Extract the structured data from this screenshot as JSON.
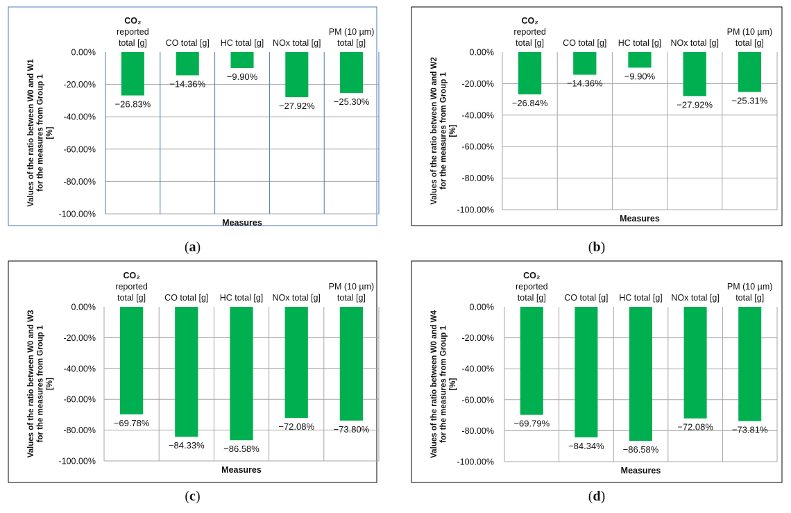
{
  "colors": {
    "bar": "#00b050",
    "grid": "#a6a6a6",
    "frame": "#000000",
    "panel_border_a": "#4a7ab8"
  },
  "chart_data": [
    {
      "type": "bar",
      "panel": "a",
      "caption": "a",
      "categories": [
        {
          "lines": [
            "CO₂",
            "reported",
            "total [g]"
          ]
        },
        {
          "lines": [
            "CO total [g]"
          ]
        },
        {
          "lines": [
            "HC total [g]"
          ]
        },
        {
          "lines": [
            "NOx total [g]"
          ]
        },
        {
          "lines": [
            "PM (10 µm)",
            "total [g]"
          ]
        }
      ],
      "values": [
        -26.83,
        -14.36,
        -9.9,
        -27.92,
        -25.3
      ],
      "value_labels": [
        "−26.83%",
        "−14.36%",
        "−9.90%",
        "−27.92%",
        "−25.30%"
      ],
      "yticks": [
        "0.00%",
        "-20.00%",
        "-40.00%",
        "-60.00%",
        "-80.00%",
        "-100.00%"
      ],
      "ylim": [
        -100,
        0
      ],
      "xlabel": "Measures",
      "ylabel": [
        "Values of the ratio between W0 and W1",
        "for the measures from Group 1",
        "[%]"
      ]
    },
    {
      "type": "bar",
      "panel": "b",
      "caption": "b",
      "categories": [
        {
          "lines": [
            "CO₂",
            "reported",
            "total [g]"
          ]
        },
        {
          "lines": [
            "CO total [g]"
          ]
        },
        {
          "lines": [
            "HC total [g]"
          ]
        },
        {
          "lines": [
            "NOx total [g]"
          ]
        },
        {
          "lines": [
            "PM (10 µm)",
            "total [g]"
          ]
        }
      ],
      "values": [
        -26.84,
        -14.36,
        -9.9,
        -27.92,
        -25.31
      ],
      "value_labels": [
        "−26.84%",
        "−14.36%",
        "−9.90%",
        "−27.92%",
        "−25.31%"
      ],
      "yticks": [
        "0.00%",
        "-20.00%",
        "-40.00%",
        "-60.00%",
        "-80.00%",
        "-100.00%"
      ],
      "ylim": [
        -100,
        0
      ],
      "xlabel": "Measures",
      "ylabel": [
        "Values of the ratio between W0 and W2",
        "for the measures from Group 1",
        "[%]"
      ]
    },
    {
      "type": "bar",
      "panel": "c",
      "caption": "c",
      "categories": [
        {
          "lines": [
            "CO₂",
            "reported",
            "total [g]"
          ]
        },
        {
          "lines": [
            "CO total [g]"
          ]
        },
        {
          "lines": [
            "HC total [g]"
          ]
        },
        {
          "lines": [
            "NOx total [g]"
          ]
        },
        {
          "lines": [
            "PM (10 µm)",
            "total [g]"
          ]
        }
      ],
      "values": [
        -69.78,
        -84.33,
        -86.58,
        -72.08,
        -73.8
      ],
      "value_labels": [
        "−69.78%",
        "−84.33%",
        "−86.58%",
        "−72.08%",
        "−73.80%"
      ],
      "yticks": [
        "0.00%",
        "-20.00%",
        "-40.00%",
        "-60.00%",
        "-80.00%",
        "-100.00%"
      ],
      "ylim": [
        -100,
        0
      ],
      "xlabel": "Measures",
      "ylabel": [
        "Values of the ratio between W0 and W3",
        "for the measures from Group 1",
        "[%]"
      ]
    },
    {
      "type": "bar",
      "panel": "d",
      "caption": "d",
      "categories": [
        {
          "lines": [
            "CO₂",
            "reported",
            "total [g]"
          ]
        },
        {
          "lines": [
            "CO total [g]"
          ]
        },
        {
          "lines": [
            "HC total [g]"
          ]
        },
        {
          "lines": [
            "NOx total [g]"
          ]
        },
        {
          "lines": [
            "PM (10 µm)",
            "total [g]"
          ]
        }
      ],
      "values": [
        -69.79,
        -84.34,
        -86.58,
        -72.08,
        -73.81
      ],
      "value_labels": [
        "−69.79%",
        "−84.34%",
        "−86.58%",
        "−72.08%",
        "−73.81%"
      ],
      "yticks": [
        "0.00%",
        "-20.00%",
        "-40.00%",
        "-60.00%",
        "-80.00%",
        "-100.00%"
      ],
      "ylim": [
        -100,
        0
      ],
      "xlabel": "Measures",
      "ylabel": [
        "Values of the ratio between W0 and W4",
        "for the measures from Group 1",
        "[%]"
      ]
    }
  ]
}
